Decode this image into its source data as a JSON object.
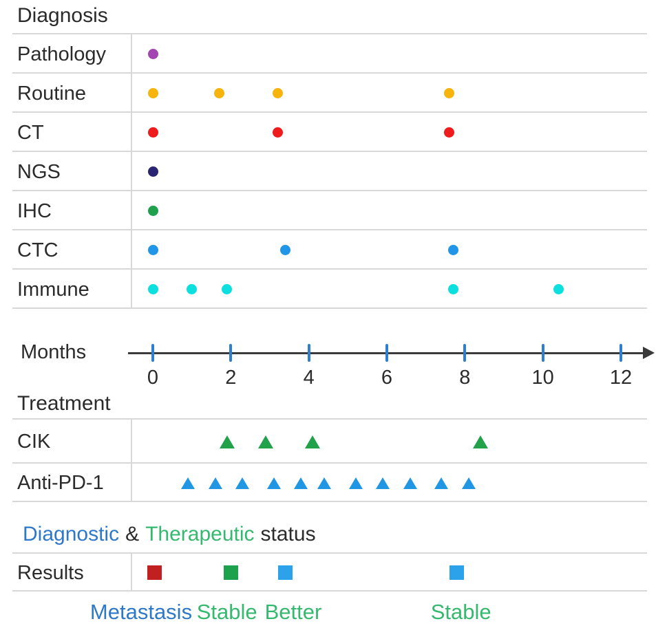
{
  "figure": {
    "diagnosis_title": "Diagnosis",
    "months_label": "Months",
    "treatment_title": "Treatment",
    "status_line": {
      "diagnostic": "Diagnostic",
      "ampersand": "&",
      "therapeutic": "Therapeutic",
      "status": "status"
    },
    "colors": {
      "text": "#2b2b2b",
      "grid_line": "#d8d8d8",
      "axis_line": "#3a3a3a",
      "tick_blue": "#2e7fd1",
      "label_blue": "#2e78c9",
      "label_green": "#35b96e"
    }
  },
  "chart_data": {
    "type": "scatter",
    "xlabel": "Months",
    "x_axis": {
      "ticks": [
        0,
        2,
        4,
        6,
        8,
        10,
        12
      ],
      "range": [
        0,
        12
      ]
    },
    "grid": "horizontal row separators, light gray",
    "legend_position": "none",
    "diagnosis_rows": [
      {
        "label": "Pathology",
        "marker": "circle",
        "color": "#a346b1",
        "months": [
          0
        ]
      },
      {
        "label": "Routine",
        "marker": "circle",
        "color": "#f6b40d",
        "months": [
          0,
          1.7,
          3.2,
          7.6
        ]
      },
      {
        "label": "CT",
        "marker": "circle",
        "color": "#ee1c1c",
        "months": [
          0,
          3.2,
          7.6
        ]
      },
      {
        "label": "NGS",
        "marker": "circle",
        "color": "#2b2472",
        "months": [
          0
        ]
      },
      {
        "label": "IHC",
        "marker": "circle",
        "color": "#1fa04c",
        "months": [
          0
        ]
      },
      {
        "label": "CTC",
        "marker": "circle",
        "color": "#2196e8",
        "months": [
          0,
          3.4,
          7.7
        ]
      },
      {
        "label": "Immune",
        "marker": "circle",
        "color": "#0ddfdf",
        "months": [
          0,
          1.0,
          1.9,
          7.7,
          10.4
        ]
      }
    ],
    "treatment_rows": [
      {
        "label": "CIK",
        "marker": "triangle",
        "color": "#21a24a",
        "months": [
          1.9,
          2.9,
          4.1,
          8.4
        ]
      },
      {
        "label": "Anti-PD-1",
        "marker": "triangle",
        "color": "#2196e3",
        "months": [
          0.9,
          1.6,
          2.3,
          3.1,
          3.8,
          4.4,
          5.2,
          5.9,
          6.6,
          7.4,
          8.1
        ]
      }
    ],
    "results_row": {
      "label": "Results",
      "marker": "square",
      "points": [
        {
          "month": 0.05,
          "color": "#c0201f"
        },
        {
          "month": 2.0,
          "color": "#1ca24c"
        },
        {
          "month": 3.4,
          "color": "#2ba2ea"
        },
        {
          "month": 7.8,
          "color": "#2ba2ea"
        }
      ]
    },
    "outcome_labels": [
      {
        "text": "Metastasis",
        "month": -0.3,
        "color": "#2e78c9"
      },
      {
        "text": "Stable",
        "month": 1.9,
        "color": "#35b96e"
      },
      {
        "text": "Better",
        "month": 3.6,
        "color": "#35b96e"
      },
      {
        "text": "Stable",
        "month": 7.9,
        "color": "#35b96e"
      }
    ]
  }
}
